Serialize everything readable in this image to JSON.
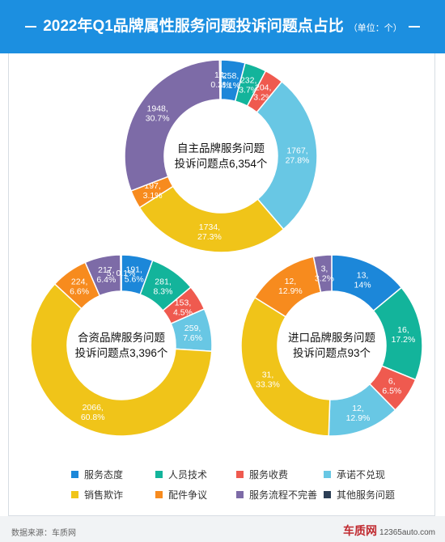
{
  "header": {
    "title": "2022年Q1品牌属性服务问题投诉问题点占比",
    "unit": "（单位：个）"
  },
  "legend": [
    {
      "name": "服务态度",
      "color": "#1c87d9"
    },
    {
      "name": "人员技术",
      "color": "#13b49b"
    },
    {
      "name": "服务收费",
      "color": "#ef5a4f"
    },
    {
      "name": "承诺不兑现",
      "color": "#68c7e4"
    },
    {
      "name": "销售欺诈",
      "color": "#f0c419"
    },
    {
      "name": "配件争议",
      "color": "#f78b1e"
    },
    {
      "name": "服务流程不完善",
      "color": "#7d6ba7"
    },
    {
      "name": "其他服务问题",
      "color": "#2c3e55"
    }
  ],
  "footer": {
    "source": "数据来源：车质网",
    "logo_text": "车质网",
    "logo_url": "12365auto.com"
  },
  "chart_data": [
    {
      "type": "pie",
      "donut": true,
      "center_lines": [
        "自主品牌服务问题",
        "投诉问题点6,354个"
      ],
      "slices": [
        {
          "category": "服务态度",
          "value": 258,
          "label": [
            "258,",
            "4.1%"
          ]
        },
        {
          "category": "人员技术",
          "value": 232,
          "label": [
            "232,",
            "3.7%"
          ]
        },
        {
          "category": "服务收费",
          "value": 204,
          "label": [
            "204,",
            "3.2%"
          ]
        },
        {
          "category": "承诺不兑现",
          "value": 1767,
          "label": [
            "1767,",
            "27.8%"
          ]
        },
        {
          "category": "销售欺诈",
          "value": 1734,
          "label": [
            "1734,",
            "27.3%"
          ]
        },
        {
          "category": "配件争议",
          "value": 197,
          "label": [
            "197,",
            "3.1%"
          ]
        },
        {
          "category": "服务流程不完善",
          "value": 1948,
          "label": [
            "1948,",
            "30.7%"
          ]
        },
        {
          "category": "其他服务问题",
          "value": 14,
          "label": [
            "14,",
            "0.2%"
          ]
        }
      ]
    },
    {
      "type": "pie",
      "donut": true,
      "center_lines": [
        "合资品牌服务问题",
        "投诉问题点3,396个"
      ],
      "slices": [
        {
          "category": "服务态度",
          "value": 191,
          "label": [
            "191,",
            "5.6%"
          ]
        },
        {
          "category": "人员技术",
          "value": 281,
          "label": [
            "281,",
            "8.3%"
          ]
        },
        {
          "category": "服务收费",
          "value": 153,
          "label": [
            "153,",
            "4.5%"
          ]
        },
        {
          "category": "承诺不兑现",
          "value": 259,
          "label": [
            "259,",
            "7.6%"
          ]
        },
        {
          "category": "销售欺诈",
          "value": 2066,
          "label": [
            "2066,",
            "60.8%"
          ]
        },
        {
          "category": "配件争议",
          "value": 224,
          "label": [
            "224,",
            "6.6%"
          ]
        },
        {
          "category": "服务流程不完善",
          "value": 217,
          "label": [
            "217,",
            "6.4%"
          ]
        },
        {
          "category": "其他服务问题",
          "value": 5,
          "label": [
            "5, 0.1%"
          ]
        }
      ]
    },
    {
      "type": "pie",
      "donut": true,
      "center_lines": [
        "进口品牌服务问题",
        "投诉问题点93个"
      ],
      "slices": [
        {
          "category": "服务态度",
          "value": 13,
          "label": [
            "13,",
            "14%"
          ]
        },
        {
          "category": "人员技术",
          "value": 16,
          "label": [
            "16,",
            "17.2%"
          ]
        },
        {
          "category": "服务收费",
          "value": 6,
          "label": [
            "6,",
            "6.5%"
          ]
        },
        {
          "category": "承诺不兑现",
          "value": 12,
          "label": [
            "12,",
            "12.9%"
          ]
        },
        {
          "category": "销售欺诈",
          "value": 31,
          "label": [
            "31,",
            "33.3%"
          ]
        },
        {
          "category": "配件争议",
          "value": 12,
          "label": [
            "12,",
            "12.9%"
          ]
        },
        {
          "category": "服务流程不完善",
          "value": 3,
          "label": [
            "3,",
            "3.2%"
          ]
        }
      ]
    }
  ]
}
